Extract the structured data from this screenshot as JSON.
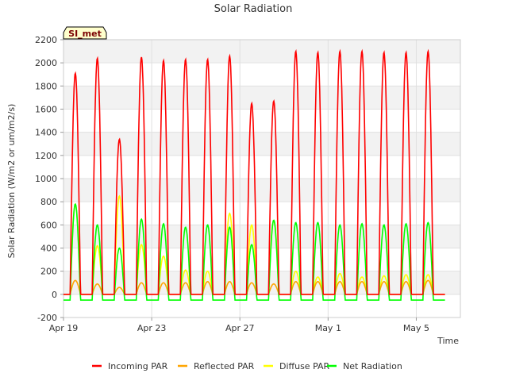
{
  "chart_data": {
    "type": "line",
    "title": "Solar Radiation",
    "xlabel": "Time",
    "ylabel": "Solar Radiation (W/m2 or um/m2/s)",
    "badge": "SI_met",
    "ylim": [
      -200,
      2200
    ],
    "yticks": [
      -200,
      0,
      200,
      400,
      600,
      800,
      1000,
      1200,
      1400,
      1600,
      1800,
      2000,
      2200
    ],
    "xlim_days": [
      0,
      18
    ],
    "xticks": [
      {
        "day": 0,
        "label": "Apr 19"
      },
      {
        "day": 4,
        "label": "Apr 23"
      },
      {
        "day": 8,
        "label": "Apr 27"
      },
      {
        "day": 12,
        "label": "May 1"
      },
      {
        "day": 16,
        "label": "May 5"
      }
    ],
    "grid": true,
    "legend": "bottom",
    "daily_peaks": {
      "days": [
        "Apr 19",
        "Apr 20",
        "Apr 21",
        "Apr 22",
        "Apr 23",
        "Apr 24",
        "Apr 25",
        "Apr 26",
        "Apr 27",
        "Apr 28",
        "Apr 29",
        "Apr 30",
        "May 1",
        "May 2",
        "May 3",
        "May 4",
        "May 5",
        "May 6"
      ],
      "incoming_par": [
        1910,
        2040,
        1340,
        2050,
        2020,
        2030,
        2030,
        2060,
        1650,
        1670,
        2100,
        2090,
        2100,
        2100,
        2090,
        2090,
        2100,
        0
      ],
      "reflected_par": [
        120,
        90,
        60,
        100,
        100,
        100,
        110,
        110,
        100,
        90,
        110,
        110,
        110,
        110,
        110,
        110,
        120,
        0
      ],
      "diffuse_par": [
        780,
        420,
        850,
        430,
        330,
        210,
        200,
        700,
        600,
        640,
        200,
        150,
        180,
        150,
        160,
        170,
        170,
        0
      ],
      "net_radiation": [
        780,
        600,
        400,
        650,
        610,
        580,
        600,
        580,
        430,
        640,
        620,
        620,
        600,
        610,
        600,
        610,
        620,
        0
      ]
    },
    "series": [
      {
        "name": "Incoming PAR",
        "color": "#ff0000"
      },
      {
        "name": "Reflected PAR",
        "color": "#ffa500"
      },
      {
        "name": "Diffuse PAR",
        "color": "#ffff00"
      },
      {
        "name": "Net Radiation",
        "color": "#00ff00"
      }
    ]
  }
}
